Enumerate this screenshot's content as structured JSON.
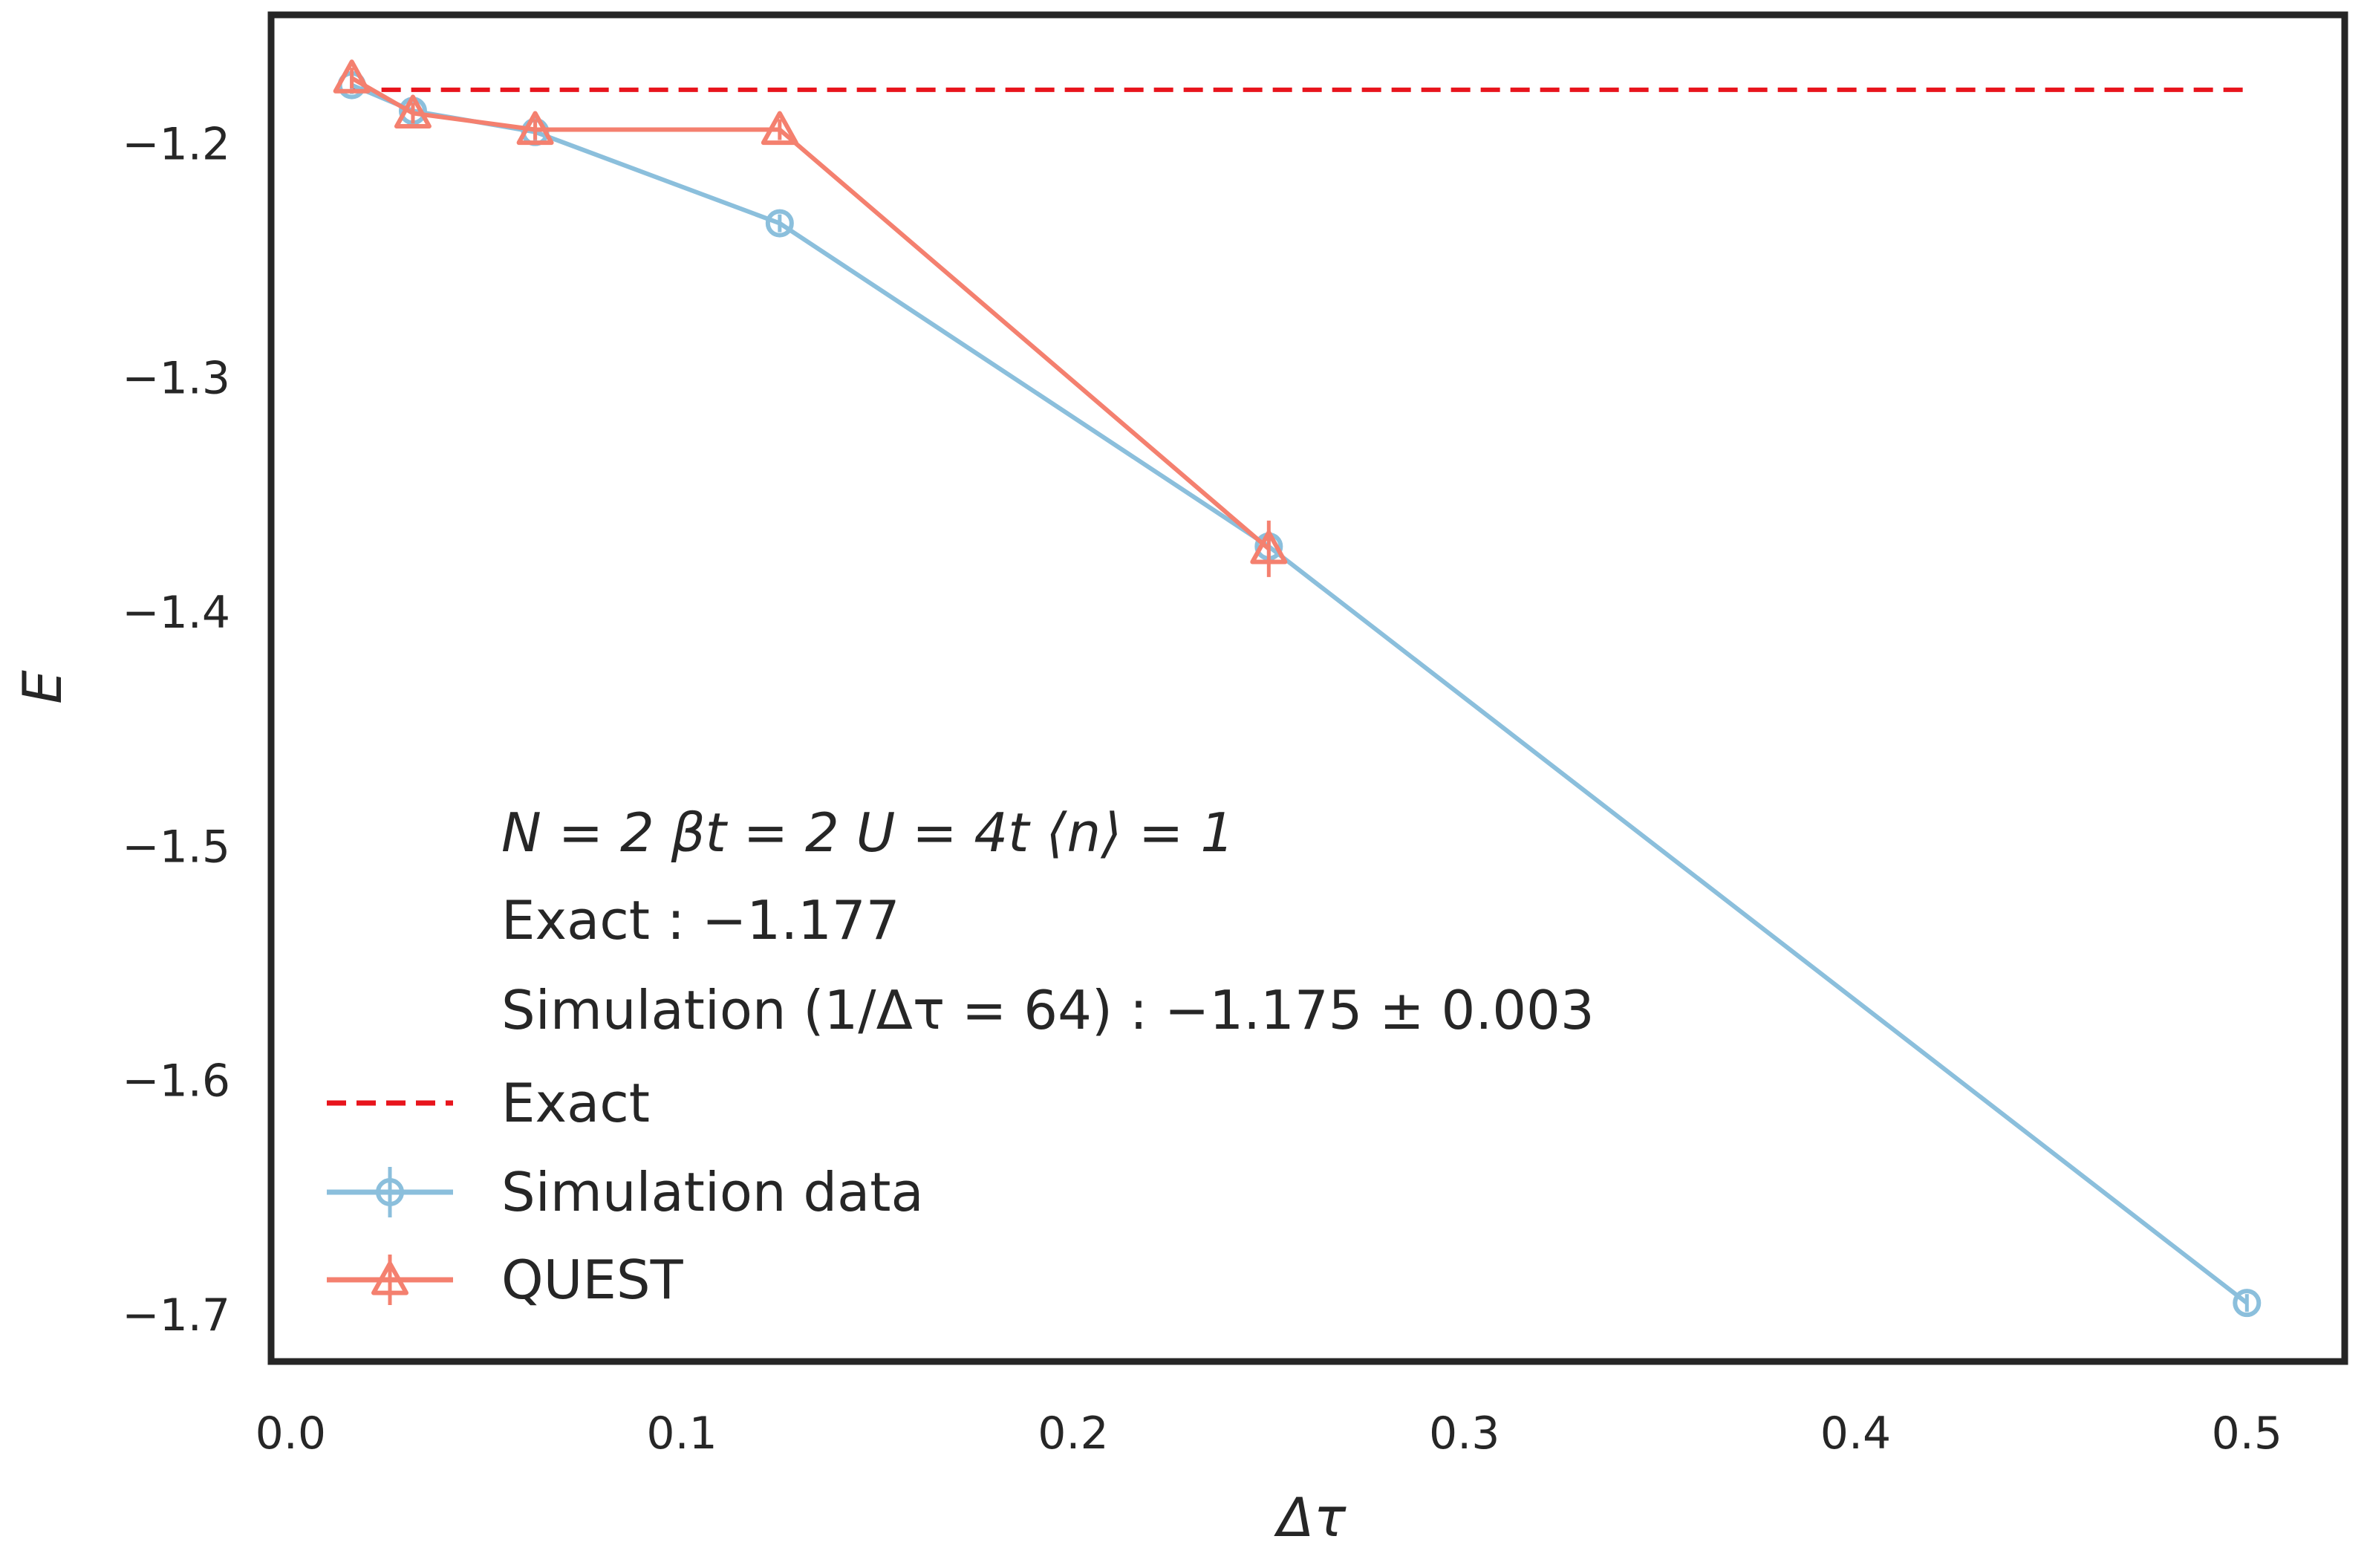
{
  "chart_data": {
    "type": "line",
    "xlabel": "Δτ",
    "ylabel": "E",
    "xlim": [
      -0.005,
      0.525
    ],
    "ylim": [
      -1.72,
      -1.145
    ],
    "xticks": [
      0.0,
      0.1,
      0.2,
      0.3,
      0.4,
      0.5
    ],
    "xtick_labels": [
      "0.0",
      "0.1",
      "0.2",
      "0.3",
      "0.4",
      "0.5"
    ],
    "yticks": [
      -1.2,
      -1.3,
      -1.4,
      -1.5,
      -1.6,
      -1.7
    ],
    "ytick_labels": [
      "−1.2",
      "−1.3",
      "−1.4",
      "−1.5",
      "−1.6",
      "−1.7"
    ],
    "grid": false,
    "legend_placement": "lower-left",
    "annotations": [
      "N = 2    βt = 2    U = 4t    ⟨n⟩ = 1",
      "Exact : −1.177",
      "Simulation (1/Δτ = 64) : −1.175 ± 0.003"
    ],
    "series": [
      {
        "name": "Exact",
        "style": "dashed",
        "color": "#e8141c",
        "x": [
          0.015625,
          0.5
        ],
        "y": [
          -1.177,
          -1.177
        ]
      },
      {
        "name": "Simulation data",
        "style": "line-circle",
        "color": "#8bbfdc",
        "x": [
          0.015625,
          0.03125,
          0.0625,
          0.125,
          0.25,
          0.5
        ],
        "y": [
          -1.175,
          -1.186,
          -1.195,
          -1.234,
          -1.372,
          -1.695
        ]
      },
      {
        "name": "QUEST",
        "style": "line-triangle",
        "color": "#f4806f",
        "x": [
          0.015625,
          0.03125,
          0.0625,
          0.125,
          0.25
        ],
        "y": [
          -1.172,
          -1.187,
          -1.194,
          -1.194,
          -1.373
        ]
      }
    ]
  }
}
